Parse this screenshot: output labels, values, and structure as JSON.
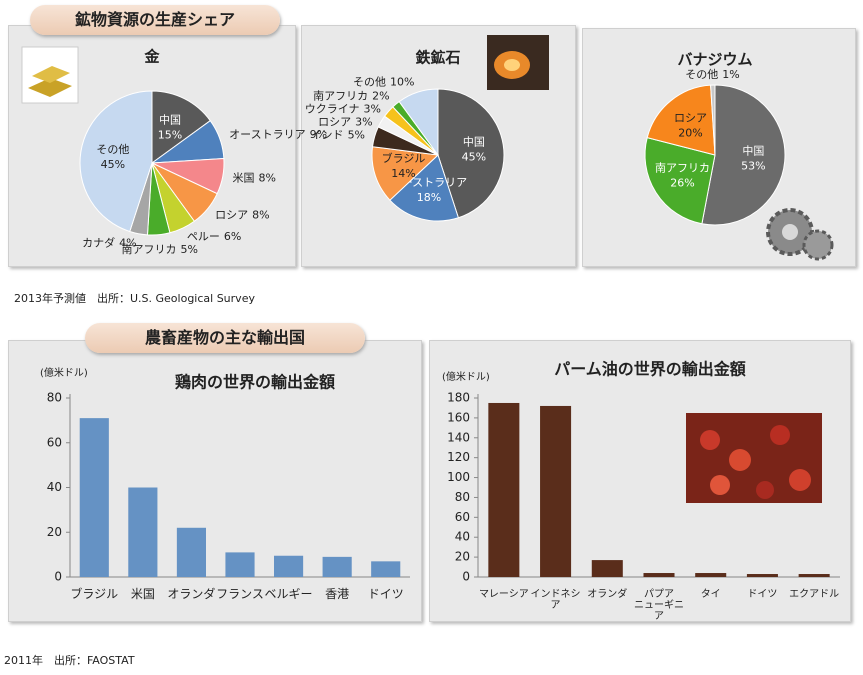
{
  "mineral_section": {
    "title": "鉱物資源の生産シェア",
    "source": "2013年予測値　出所：U.S. Geological Survey"
  },
  "agri_section": {
    "title": "農畜産物の主な輸出国",
    "source": "2011年　出所：FAOSTAT"
  },
  "chart_data": [
    {
      "type": "pie",
      "title": "金",
      "categories": [
        "中国",
        "オーストラリア",
        "米国",
        "ロシア",
        "ペルー",
        "南アフリカ",
        "カナダ",
        "その他"
      ],
      "values": [
        15,
        9,
        8,
        8,
        6,
        5,
        4,
        45
      ],
      "value_labels": [
        "15%",
        "9%",
        "8%",
        "8%",
        "6%",
        "5%",
        "4%",
        "45%"
      ],
      "colors": [
        "#595959",
        "#4f81bd",
        "#f4878b",
        "#f79646",
        "#c4d22e",
        "#4aac2a",
        "#a6a6a6",
        "#c6d9f0"
      ]
    },
    {
      "type": "pie",
      "title": "鉄鉱石",
      "categories": [
        "中国",
        "オーストラリア",
        "ブラジル",
        "インド",
        "ロシア",
        "ウクライナ",
        "南アフリカ",
        "その他"
      ],
      "values": [
        45,
        18,
        14,
        5,
        3,
        3,
        2,
        10
      ],
      "value_labels": [
        "45%",
        "18%",
        "14%",
        "5%",
        "3%",
        "3%",
        "2%",
        "10%"
      ],
      "colors": [
        "#595959",
        "#4f81bd",
        "#f79646",
        "#3d2a1e",
        "#f2f2f2",
        "#f6c21c",
        "#4aac2a",
        "#c6d9f0"
      ]
    },
    {
      "type": "pie",
      "title": "バナジウム",
      "categories": [
        "中国",
        "南アフリカ",
        "ロシア",
        "その他"
      ],
      "values": [
        53,
        26,
        20,
        1
      ],
      "value_labels": [
        "53%",
        "26%",
        "20%",
        "1%"
      ],
      "colors": [
        "#6b6b6b",
        "#4aac2a",
        "#f7861c",
        "#c8c8c8"
      ]
    },
    {
      "type": "bar",
      "title": "鶏肉の世界の輸出金額",
      "y_label": "(億米ドル)",
      "categories": [
        "ブラジル",
        "米国",
        "オランダ",
        "フランス",
        "ベルギー",
        "香港",
        "ドイツ"
      ],
      "values": [
        71,
        40,
        22,
        11,
        9.5,
        9,
        7
      ],
      "color": "#6592c4",
      "ylim": [
        0,
        80
      ],
      "yticks": [
        0,
        20,
        40,
        60,
        80
      ]
    },
    {
      "type": "bar",
      "title": "パーム油の世界の輸出金額",
      "y_label": "(億米ドル)",
      "categories": [
        "マレーシア",
        "インドネシア",
        "オランダ",
        "パプア\nニューギニア",
        "タイ",
        "ドイツ",
        "エクアドル"
      ],
      "values": [
        175,
        172,
        17,
        4,
        4,
        3,
        3
      ],
      "color": "#5a2d1b",
      "ylim": [
        0,
        180
      ],
      "yticks": [
        0,
        20,
        40,
        60,
        80,
        100,
        120,
        140,
        160,
        180
      ]
    }
  ]
}
